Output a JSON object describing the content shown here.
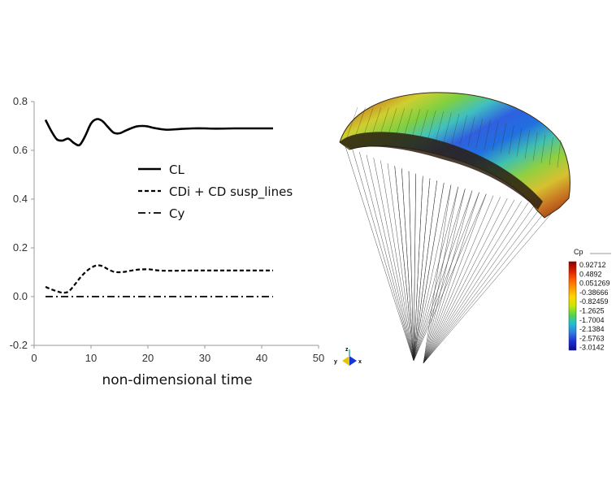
{
  "chart_data": {
    "type": "line",
    "title": "",
    "xlabel": "non-dimensional time",
    "ylabel": "",
    "xlim": [
      0,
      50
    ],
    "ylim": [
      -0.2,
      0.8
    ],
    "xticks": [
      "0",
      "10",
      "20",
      "30",
      "40",
      "50"
    ],
    "yticks": [
      "-0.2",
      "0.0",
      "0.2",
      "0.4",
      "0.6",
      "0.8"
    ],
    "grid": false,
    "legend_position": "center",
    "series": [
      {
        "name": "CL",
        "style": "solid",
        "x": [
          2,
          3,
          4,
          5,
          6,
          7,
          8,
          9,
          10,
          11,
          12,
          13,
          14,
          15,
          16,
          17,
          18,
          19,
          20,
          21,
          22,
          23,
          24,
          26,
          28,
          30,
          32,
          35,
          38,
          42
        ],
        "y": [
          0.725,
          0.68,
          0.645,
          0.64,
          0.648,
          0.63,
          0.622,
          0.66,
          0.71,
          0.728,
          0.72,
          0.695,
          0.672,
          0.67,
          0.68,
          0.69,
          0.698,
          0.7,
          0.698,
          0.692,
          0.688,
          0.685,
          0.685,
          0.688,
          0.69,
          0.69,
          0.689,
          0.69,
          0.69,
          0.69
        ]
      },
      {
        "name": "CDi + CD susp_lines",
        "style": "dashed",
        "x": [
          2,
          3,
          4,
          5,
          6,
          7,
          8,
          9,
          10,
          11,
          12,
          13,
          14,
          15,
          16,
          18,
          20,
          22,
          24,
          28,
          32,
          36,
          42
        ],
        "y": [
          0.04,
          0.03,
          0.022,
          0.016,
          0.02,
          0.045,
          0.075,
          0.1,
          0.118,
          0.128,
          0.125,
          0.112,
          0.102,
          0.1,
          0.102,
          0.11,
          0.112,
          0.107,
          0.106,
          0.107,
          0.107,
          0.107,
          0.107
        ]
      },
      {
        "name": "Cy",
        "style": "dash-dot",
        "x": [
          2,
          42
        ],
        "y": [
          0.0,
          0.0
        ]
      }
    ]
  },
  "colorbar": {
    "title": "Cp",
    "labels": [
      "0.92712",
      "0.4892",
      "0.051269",
      "-0.38666",
      "-0.82459",
      "-1.2625",
      "-1.7004",
      "-2.1384",
      "-2.5763",
      "-3.0142"
    ],
    "colors": [
      "#8b0000",
      "#d61a00",
      "#ff5a00",
      "#ff9a00",
      "#ffd700",
      "#c8e600",
      "#55d44a",
      "#1fbfd0",
      "#2f7de0",
      "#1b2fd0",
      "#0a0a9a"
    ]
  },
  "axes_triad": {
    "labels": [
      "y",
      "z",
      "x"
    ],
    "colors": {
      "y": "#e0c000",
      "z": "#20b0b0",
      "x": "#1030d0"
    }
  },
  "canopy": {
    "shading_colors": [
      "#8a3a10",
      "#c97a20",
      "#cfcf30",
      "#7fd040",
      "#3fc0c0",
      "#2f60e0",
      "#2070e0",
      "#40c0b0",
      "#90d040",
      "#d8c030",
      "#c46a20",
      "#7a2e10"
    ],
    "lines_color": "#222222"
  }
}
